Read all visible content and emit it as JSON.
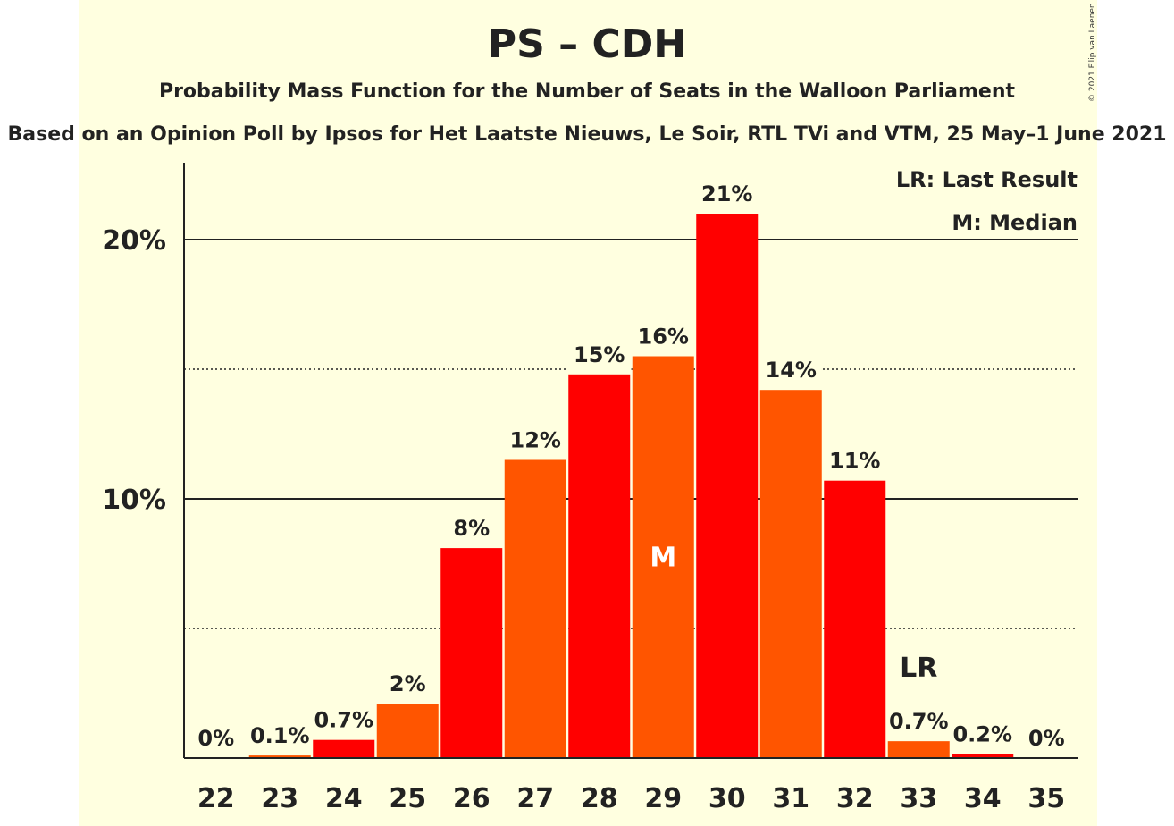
{
  "title": "PS – CDH",
  "subtitle": "Probability Mass Function for the Number of Seats in the Walloon Parliament",
  "subtitle2": "Based on an Opinion Poll by Ipsos for Het Laatste Nieuws, Le Soir, RTL TVi and VTM, 25 May–1 June 2021",
  "copyright": "© 2021 Filip van Laenen",
  "colors": {
    "background": "#ffffe0",
    "bar_primary": "#ff0000",
    "bar_secondary": "#ff5500"
  },
  "legend": {
    "last_result": "LR: Last Result",
    "median": "M: Median"
  },
  "chart_data": {
    "type": "bar",
    "xlabel": "",
    "ylabel": "",
    "ylim": [
      0,
      23
    ],
    "yticks": [
      {
        "value": 10,
        "label": "10%"
      },
      {
        "value": 20,
        "label": "20%"
      }
    ],
    "minor_gridlines": [
      5,
      15
    ],
    "categories": [
      "22",
      "23",
      "24",
      "25",
      "26",
      "27",
      "28",
      "29",
      "30",
      "31",
      "32",
      "33",
      "34",
      "35"
    ],
    "values": [
      0,
      0.1,
      0.7,
      2.1,
      8.1,
      11.5,
      14.8,
      15.5,
      21.0,
      14.2,
      10.7,
      0.65,
      0.15,
      0
    ],
    "labels": [
      "0%",
      "0.1%",
      "0.7%",
      "2%",
      "8%",
      "12%",
      "15%",
      "16%",
      "21%",
      "14%",
      "11%",
      "0.7%",
      "0.2%",
      "0%"
    ],
    "median": {
      "category": "29",
      "label": "M"
    },
    "last_result": {
      "category": "33",
      "label": "LR"
    }
  }
}
